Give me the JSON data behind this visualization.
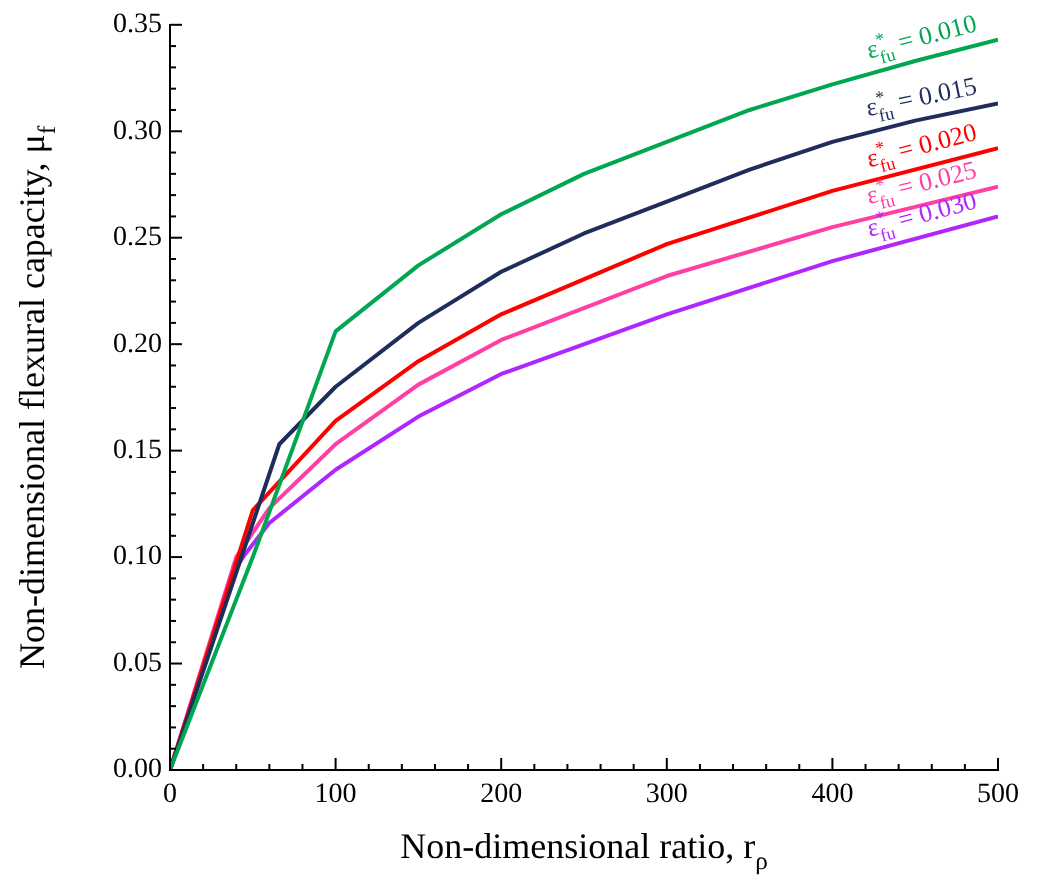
{
  "chart_data": {
    "type": "line",
    "xlabel": "Non-dimensional ratio, r$_{ρ}$",
    "ylabel": "Non-dimensional flexural capacity, μ$_{f}$",
    "xlim": [
      0,
      500
    ],
    "ylim": [
      0,
      0.35
    ],
    "xticks": [
      0,
      {
        "value": 20,
        "label": null
      },
      {
        "value": 40,
        "label": null
      },
      {
        "value": 60,
        "label": null
      },
      {
        "value": 80,
        "label": null
      },
      100,
      {
        "value": 120,
        "label": null
      },
      {
        "value": 140,
        "label": null
      },
      {
        "value": 160,
        "label": null
      },
      {
        "value": 180,
        "label": null
      },
      200,
      {
        "value": 220,
        "label": null
      },
      {
        "value": 240,
        "label": null
      },
      {
        "value": 260,
        "label": null
      },
      {
        "value": 280,
        "label": null
      },
      300,
      {
        "value": 320,
        "label": null
      },
      {
        "value": 340,
        "label": null
      },
      {
        "value": 360,
        "label": null
      },
      {
        "value": 380,
        "label": null
      },
      400,
      {
        "value": 420,
        "label": null
      },
      {
        "value": 440,
        "label": null
      },
      {
        "value": 460,
        "label": null
      },
      {
        "value": 480,
        "label": null
      },
      500
    ],
    "yticks": [
      {
        "value": 0,
        "label": "0.00"
      },
      {
        "value": 0.01,
        "label": null
      },
      {
        "value": 0.02,
        "label": null
      },
      {
        "value": 0.03,
        "label": null
      },
      {
        "value": 0.04,
        "label": null
      },
      0.05,
      {
        "value": 0.06,
        "label": null
      },
      {
        "value": 0.07,
        "label": null
      },
      {
        "value": 0.08,
        "label": null
      },
      {
        "value": 0.09,
        "label": null
      },
      {
        "value": 0.1,
        "label": "0.10"
      },
      {
        "value": 0.11,
        "label": null
      },
      {
        "value": 0.12,
        "label": null
      },
      {
        "value": 0.13,
        "label": null
      },
      {
        "value": 0.14,
        "label": null
      },
      0.15,
      {
        "value": 0.16,
        "label": null
      },
      {
        "value": 0.17,
        "label": null
      },
      {
        "value": 0.18,
        "label": null
      },
      {
        "value": 0.19,
        "label": null
      },
      {
        "value": 0.2,
        "label": "0.20"
      },
      {
        "value": 0.21,
        "label": null
      },
      {
        "value": 0.22,
        "label": null
      },
      {
        "value": 0.23,
        "label": null
      },
      {
        "value": 0.24,
        "label": null
      },
      0.25,
      {
        "value": 0.26,
        "label": null
      },
      {
        "value": 0.27,
        "label": null
      },
      {
        "value": 0.28,
        "label": null
      },
      {
        "value": 0.29,
        "label": null
      },
      {
        "value": 0.3,
        "label": "0.30"
      },
      {
        "value": 0.31,
        "label": null
      },
      {
        "value": 0.32,
        "label": null
      },
      {
        "value": 0.33,
        "label": null
      },
      {
        "value": 0.34,
        "label": null
      },
      0.35
    ],
    "grid": false,
    "legend": false,
    "marker": "none",
    "line_style": "solid",
    "series": [
      {
        "name": "ε$^{*}$$_{fu}$ = 0.010",
        "color": "#00a651",
        "x": [
          0,
          50,
          100,
          150,
          200,
          250,
          300,
          350,
          400,
          450,
          500
        ],
        "values": [
          0,
          0.1,
          0.206,
          0.237,
          0.261,
          0.28,
          0.295,
          0.31,
          0.322,
          0.333,
          0.343
        ]
      },
      {
        "name": "ε$^{*}$$_{fu}$ = 0.015",
        "color": "#1f2d5c",
        "x": [
          0,
          66,
          100,
          150,
          200,
          250,
          300,
          350,
          400,
          450,
          500
        ],
        "values": [
          0,
          0.153,
          0.18,
          0.21,
          0.234,
          0.252,
          0.267,
          0.282,
          0.295,
          0.305,
          0.313
        ]
      },
      {
        "name": "ε$^{*}$$_{fu}$ = 0.020",
        "color": "#ff0000",
        "x": [
          0,
          50,
          100,
          150,
          200,
          300,
          400,
          500
        ],
        "values": [
          0,
          0.122,
          0.164,
          0.192,
          0.214,
          0.247,
          0.272,
          0.292
        ]
      },
      {
        "name": "ε$^{*}$$_{fu}$ = 0.025",
        "color": "#ff3fa4",
        "x": [
          0,
          40,
          60,
          100,
          150,
          200,
          300,
          400,
          500
        ],
        "values": [
          0,
          0.1,
          0.123,
          0.153,
          0.181,
          0.202,
          0.232,
          0.255,
          0.274
        ]
      },
      {
        "name": "ε$^{*}$$_{fu}$ = 0.030",
        "color": "#b026ff",
        "x": [
          0,
          40,
          45,
          60,
          100,
          150,
          200,
          300,
          400,
          500
        ],
        "values": [
          0,
          0.095,
          0.101,
          0.116,
          0.141,
          0.166,
          0.186,
          0.214,
          0.239,
          0.26
        ]
      }
    ]
  }
}
